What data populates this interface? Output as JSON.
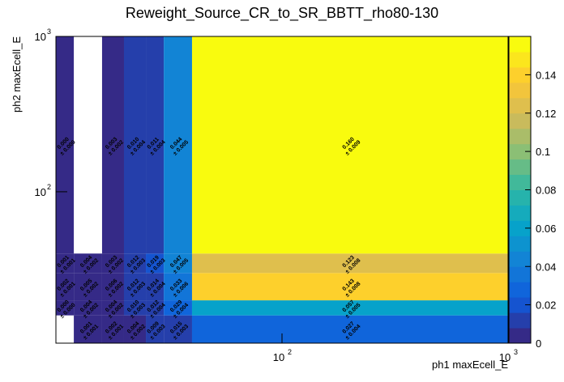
{
  "chart_data": {
    "type": "heatmap2d",
    "title": "Reweight_Source_CR_to_SR_BBTT_rho80-130",
    "x_label": "ph1 maxEcell_E",
    "y_label": "ph2 maxEcell_E",
    "log_x": true,
    "log_y": true,
    "xlim": [
      10,
      1000
    ],
    "ylim": [
      10.6,
      1000
    ],
    "xticks": [
      {
        "value": 100,
        "label": "10",
        "exponent": "2"
      },
      {
        "value": 1000,
        "label": "10",
        "exponent": "3"
      }
    ],
    "yticks": [
      {
        "value": 100,
        "label": "10",
        "exponent": "2"
      },
      {
        "value": 1000,
        "label": "10",
        "exponent": "3"
      }
    ],
    "x_edges": [
      10,
      12,
      16,
      20,
      25,
      30,
      40,
      1000
    ],
    "y_edges": [
      10.6,
      16,
      20,
      30,
      40,
      1000
    ],
    "values": [
      [
        null,
        0.001,
        0.002,
        0.004,
        0.009,
        0.015,
        0.027
      ],
      [
        0.0,
        0.004,
        0.004,
        0.01,
        0.012,
        0.029,
        0.057
      ],
      [
        0.002,
        0.005,
        0.006,
        0.012,
        0.014,
        0.033,
        0.143
      ],
      [
        0.001,
        0.004,
        0.003,
        0.012,
        0.019,
        0.047,
        0.123
      ],
      [
        0.0,
        null,
        0.003,
        0.01,
        0.011,
        0.044,
        0.16
      ]
    ],
    "value_labels": [
      [
        null,
        "0.001",
        "0.002",
        "0.004",
        "0.009",
        "0.015",
        "0.027"
      ],
      [
        "0.000",
        "0.004",
        "0.004",
        "0.010",
        "0.012",
        "0.029",
        "0.057"
      ],
      [
        "0.002",
        "0.005",
        "0.006",
        "0.012",
        "0.014",
        "0.033",
        "0.143"
      ],
      [
        "0.001",
        "0.004",
        "0.003",
        "0.012",
        "0.019",
        "0.047",
        "0.123"
      ],
      [
        "0.000",
        null,
        "0.003",
        "0.010",
        "0.011",
        "0.044",
        "0.160"
      ]
    ],
    "errors": [
      [
        null,
        0.001,
        0.001,
        0.002,
        0.003,
        0.003,
        0.004
      ],
      [
        0.0,
        0.002,
        0.002,
        0.003,
        0.004,
        0.004,
        0.005
      ],
      [
        0.001,
        0.002,
        0.002,
        0.003,
        0.004,
        0.006,
        0.008
      ],
      [
        0.001,
        0.002,
        0.002,
        0.003,
        0.003,
        0.005,
        0.008
      ],
      [
        0.0,
        null,
        0.002,
        0.004,
        0.004,
        0.005,
        0.009
      ]
    ],
    "error_labels": [
      [
        null,
        "± 0.001",
        "± 0.001",
        "± 0.002",
        "± 0.003",
        "± 0.003",
        "± 0.004"
      ],
      [
        "± 0.000",
        "± 0.002",
        "± 0.002",
        "± 0.003",
        "± 0.004",
        "± 0.004",
        "± 0.005"
      ],
      [
        "± 0.001",
        "± 0.002",
        "± 0.002",
        "± 0.003",
        "± 0.004",
        "± 0.006",
        "± 0.008"
      ],
      [
        "± 0.001",
        "± 0.002",
        "± 0.002",
        "± 0.003",
        "± 0.003",
        "± 0.005",
        "± 0.008"
      ],
      [
        "± 0.000",
        null,
        "± 0.002",
        "± 0.004",
        "± 0.004",
        "± 0.005",
        "± 0.009"
      ]
    ],
    "zlim": [
      0,
      0.16
    ],
    "zticks": [
      0,
      0.02,
      0.04,
      0.06,
      0.08,
      0.1,
      0.12,
      0.14
    ],
    "palette": "bird",
    "levels": 20
  }
}
